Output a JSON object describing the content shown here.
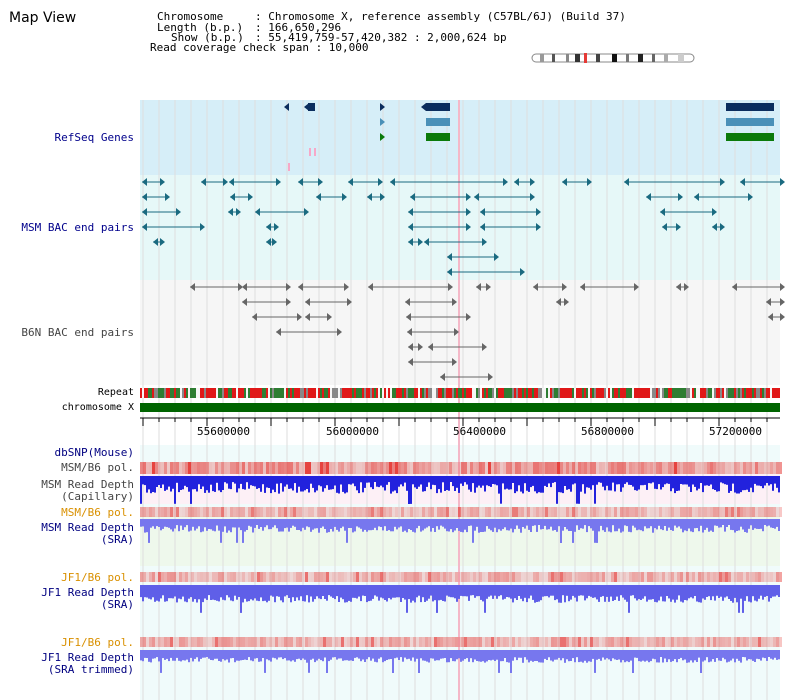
{
  "header": {
    "view_title": "Map View",
    "chromosome_label": "Chromosome",
    "chromosome_value": ": Chromosome X, reference assembly (C57BL/6J) (Build 37)",
    "length_label": "Length (b.p.)",
    "length_value": ": 166,650,296",
    "show_label": "Show (b.p.)",
    "show_value": ": 55,419,759-57,420,382 : 2,000,624 bp",
    "coverage_text": "Read coverage check span : 10,000"
  },
  "tracks": {
    "refseq": "RefSeq Genes",
    "msm_bac": "MSM BAC end pairs",
    "b6n_bac": "B6N BAC end pairs",
    "repeat": "Repeat",
    "chromosome": "chromosome X",
    "dbsnp": "dbSNP(Mouse)",
    "msm_b6_pol_1": "MSM/B6 pol.",
    "msm_depth_cap_1": "MSM Read Depth",
    "msm_depth_cap_2": "(Capillary)",
    "msm_b6_pol_2": "MSM/B6 pol.",
    "msm_depth_sra_1": "MSM Read Depth",
    "msm_depth_sra_2": "(SRA)",
    "jf1_b6_pol_1": "JF1/B6 pol.",
    "jf1_depth_sra_1": "JF1 Read Depth",
    "jf1_depth_sra_2": "(SRA)",
    "jf1_b6_pol_2": "JF1/B6 pol.",
    "jf1_depth_trim_1": "JF1 Read Depth",
    "jf1_depth_trim_2": "(SRA trimmed)"
  },
  "axis": {
    "ticks": [
      "55600000",
      "56000000",
      "56400000",
      "56800000",
      "57200000"
    ]
  },
  "colors": {
    "refseq_bg": "#d6eef8",
    "msm_bg": "#e6f8f8",
    "b6n_bg": "#f6f6f6",
    "gene_navy": "#0b2d5e",
    "gene_blue": "#4a90b8",
    "gene_green": "#0a7a0a",
    "chrom_green": "#006400",
    "pol_red": "#e53935",
    "depth_blue_cap": "#2222dd",
    "depth_blue_sra": "#7777ee",
    "bac_msm": "#1a6a80",
    "bac_b6n": "#555555"
  }
}
